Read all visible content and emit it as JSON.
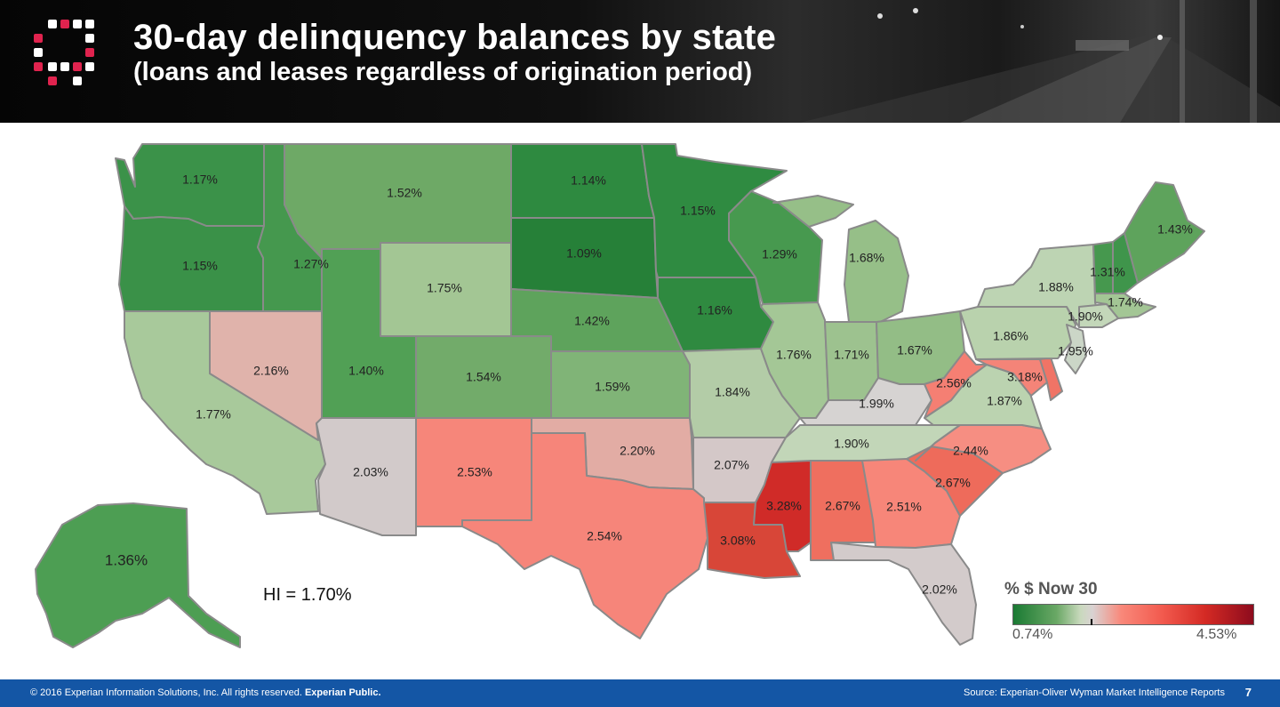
{
  "header": {
    "title": "30-day delinquency balances by state",
    "subtitle": "(loans and leases regardless of origination period)"
  },
  "map": {
    "states": [
      {
        "id": "WA",
        "value": "1.17%",
        "color": "#3b9249"
      },
      {
        "id": "OR",
        "value": "1.15%",
        "color": "#3a9148"
      },
      {
        "id": "CA",
        "value": "1.77%",
        "color": "#a8c99b"
      },
      {
        "id": "NV",
        "value": "2.16%",
        "color": "#e0b3ab"
      },
      {
        "id": "ID",
        "value": "1.27%",
        "color": "#45984e"
      },
      {
        "id": "MT",
        "value": "1.52%",
        "color": "#6ea966"
      },
      {
        "id": "WY",
        "value": "1.75%",
        "color": "#a3c694"
      },
      {
        "id": "UT",
        "value": "1.40%",
        "color": "#51a055"
      },
      {
        "id": "AZ",
        "value": "2.03%",
        "color": "#d2caca"
      },
      {
        "id": "CO",
        "value": "1.54%",
        "color": "#72ab6a"
      },
      {
        "id": "NM",
        "value": "2.53%",
        "color": "#f6867a"
      },
      {
        "id": "ND",
        "value": "1.14%",
        "color": "#2e8a40"
      },
      {
        "id": "SD",
        "value": "1.09%",
        "color": "#268038"
      },
      {
        "id": "NE",
        "value": "1.42%",
        "color": "#5ea35c"
      },
      {
        "id": "KS",
        "value": "1.59%",
        "color": "#80b477"
      },
      {
        "id": "OK",
        "value": "2.20%",
        "color": "#e2aca4"
      },
      {
        "id": "TX",
        "value": "2.54%",
        "color": "#f6857a"
      },
      {
        "id": "MN",
        "value": "1.15%",
        "color": "#2f8b41"
      },
      {
        "id": "IA",
        "value": "1.16%",
        "color": "#2f8a40"
      },
      {
        "id": "MO",
        "value": "1.84%",
        "color": "#b3cca7"
      },
      {
        "id": "AR",
        "value": "2.07%",
        "color": "#d4c8c8"
      },
      {
        "id": "LA",
        "value": "3.08%",
        "color": "#d84638"
      },
      {
        "id": "WI",
        "value": "1.29%",
        "color": "#47994f"
      },
      {
        "id": "IL",
        "value": "1.76%",
        "color": "#a4c796"
      },
      {
        "id": "MI",
        "value": "1.68%",
        "color": "#96bf88"
      },
      {
        "id": "IN",
        "value": "1.71%",
        "color": "#9dc28f"
      },
      {
        "id": "OH",
        "value": "1.67%",
        "color": "#93bd86"
      },
      {
        "id": "KY",
        "value": "1.99%",
        "color": "#d6d3d2"
      },
      {
        "id": "TN",
        "value": "1.90%",
        "color": "#c2d6b8"
      },
      {
        "id": "MS",
        "value": "3.28%",
        "color": "#d02b28"
      },
      {
        "id": "AL",
        "value": "2.67%",
        "color": "#ef6f5f"
      },
      {
        "id": "GA",
        "value": "2.51%",
        "color": "#f78679"
      },
      {
        "id": "FL",
        "value": "2.02%",
        "color": "#d3cbcb"
      },
      {
        "id": "SC",
        "value": "2.67%",
        "color": "#ee6b5b"
      },
      {
        "id": "NC",
        "value": "2.44%",
        "color": "#f68e82"
      },
      {
        "id": "VA",
        "value": "1.87%",
        "color": "#bbd3b0"
      },
      {
        "id": "WV",
        "value": "2.56%",
        "color": "#f57f73"
      },
      {
        "id": "MD",
        "value": "3.18%",
        "color": "#f48478"
      },
      {
        "id": "DE",
        "value": "",
        "color": "#f07466"
      },
      {
        "id": "PA",
        "value": "1.86%",
        "color": "#b9d2ad"
      },
      {
        "id": "NJ",
        "value": "1.95%",
        "color": "#cbd6c7"
      },
      {
        "id": "NY",
        "value": "1.88%",
        "color": "#bdd4b3"
      },
      {
        "id": "CT",
        "value": "1.90%",
        "color": "#c3d7b9"
      },
      {
        "id": "MA",
        "value": "1.74%",
        "color": "#a3c695"
      },
      {
        "id": "VT",
        "value": "1.31%",
        "color": "#46984e"
      },
      {
        "id": "NH",
        "value": "",
        "color": "#3f954b"
      },
      {
        "id": "ME",
        "value": "1.43%",
        "color": "#5ea35c"
      },
      {
        "id": "AK",
        "value": "1.36%",
        "color": "#4d9e53"
      }
    ],
    "hi_label": "HI = 1.70%"
  },
  "legend": {
    "title": "% $ Now 30",
    "min": "0.74%",
    "max": "4.53%"
  },
  "footer": {
    "copyright": "© 2016 Experian Information Solutions, Inc. All rights reserved. ",
    "copyright_bold": "Experian Public.",
    "source": "Source: Experian-Oliver Wyman Market Intelligence Reports",
    "page": "7"
  }
}
